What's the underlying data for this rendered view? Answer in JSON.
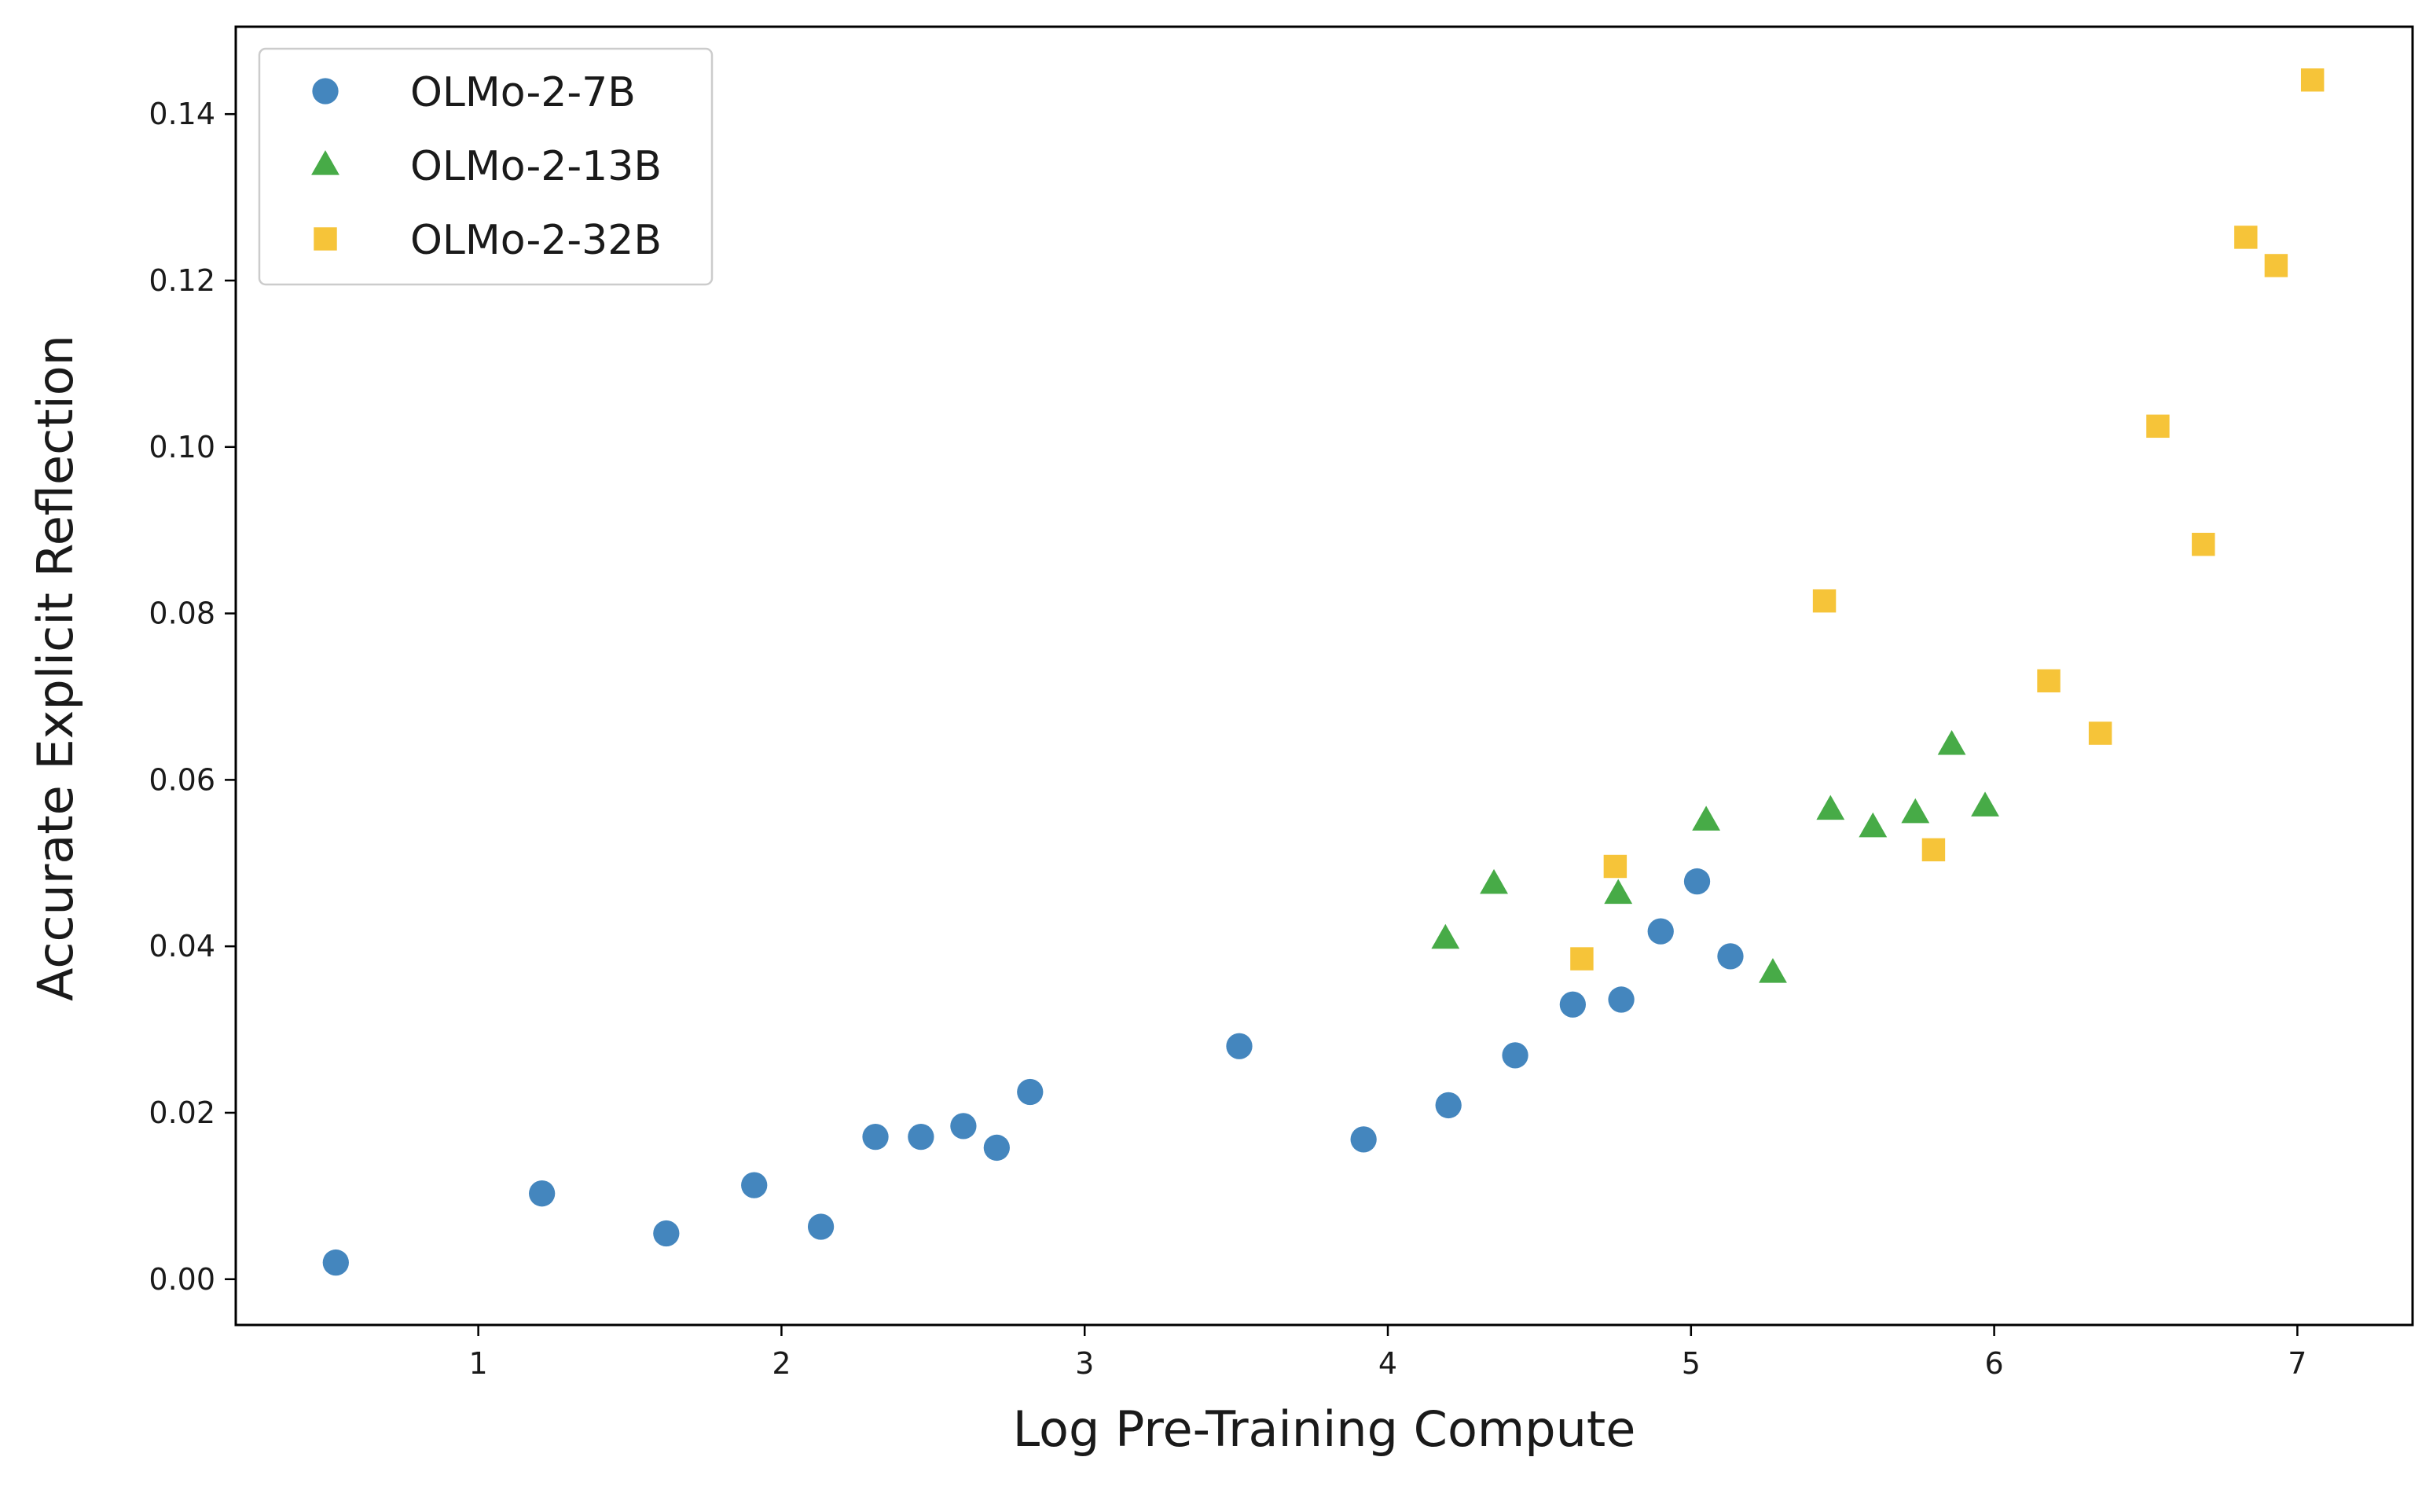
{
  "chart_data": {
    "type": "scatter",
    "title": "",
    "xlabel": "Log Pre-Training Compute",
    "ylabel": "Accurate Explicit Reflection",
    "xlim": [
      0.2,
      7.38
    ],
    "ylim": [
      -0.0055,
      0.1505
    ],
    "xticks": [
      1,
      2,
      3,
      4,
      5,
      6,
      7
    ],
    "xtick_labels": [
      "1",
      "2",
      "3",
      "4",
      "5",
      "6",
      "7"
    ],
    "yticks": [
      0.0,
      0.02,
      0.04,
      0.06,
      0.08,
      0.1,
      0.12,
      0.14
    ],
    "ytick_labels": [
      "0.00",
      "0.02",
      "0.04",
      "0.06",
      "0.08",
      "0.10",
      "0.12",
      "0.14"
    ],
    "grid": false,
    "legend": "top-left",
    "series": [
      {
        "name": "OLMo-2-7B",
        "marker": "circle",
        "color": "#3a80ba",
        "x": [
          0.53,
          1.21,
          1.62,
          1.91,
          2.13,
          2.31,
          2.46,
          2.6,
          2.71,
          2.82,
          3.51,
          3.92,
          4.2,
          4.42,
          4.61,
          4.77,
          4.9,
          5.02,
          5.13
        ],
        "y": [
          0.002,
          0.0103,
          0.0055,
          0.0113,
          0.0063,
          0.0171,
          0.0171,
          0.0184,
          0.0158,
          0.0225,
          0.028,
          0.0168,
          0.0209,
          0.0269,
          0.033,
          0.0336,
          0.0418,
          0.0478,
          0.0388
        ]
      },
      {
        "name": "OLMo-2-13B",
        "marker": "triangle",
        "color": "#3da63d",
        "x": [
          4.19,
          4.35,
          4.76,
          5.05,
          5.27,
          5.46,
          5.6,
          5.74,
          5.86,
          5.97
        ],
        "y": [
          0.0409,
          0.0475,
          0.0463,
          0.0551,
          0.0368,
          0.0564,
          0.0543,
          0.056,
          0.0642,
          0.0568
        ]
      },
      {
        "name": "OLMo-2-32B",
        "marker": "square",
        "color": "#f5c12e",
        "x": [
          4.64,
          4.75,
          5.44,
          5.8,
          6.18,
          6.35,
          6.54,
          6.69,
          6.83,
          6.93,
          7.05
        ],
        "y": [
          0.0385,
          0.0496,
          0.0815,
          0.0516,
          0.0719,
          0.0656,
          0.1025,
          0.0883,
          0.1252,
          0.1218,
          0.1441
        ]
      }
    ]
  }
}
